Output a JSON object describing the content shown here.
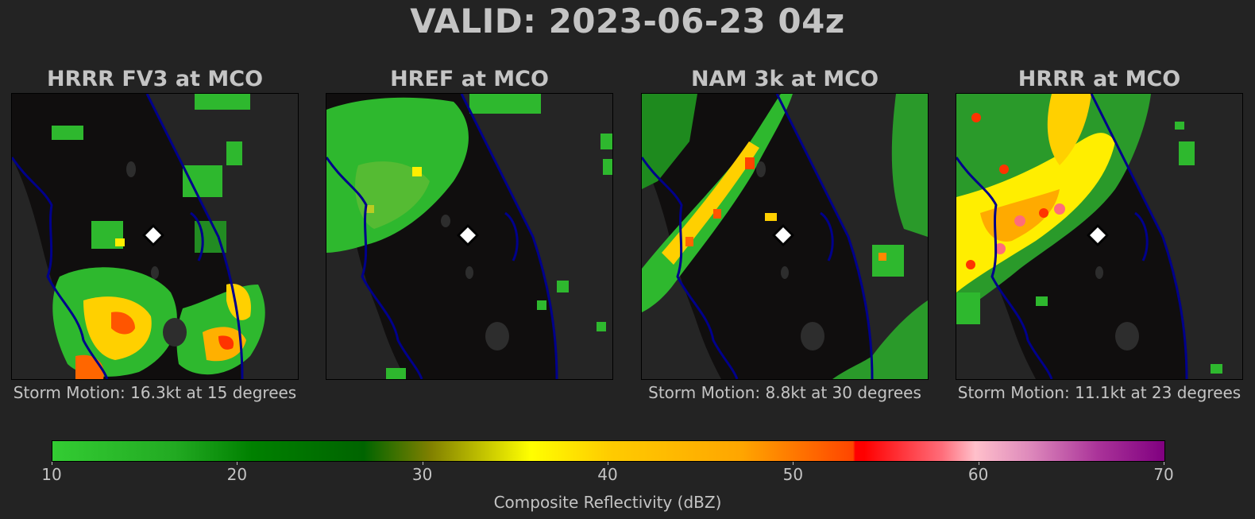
{
  "title": "VALID: 2023-06-23 04z",
  "panels": [
    {
      "title": "HRRR FV3 at MCO",
      "storm_motion": "Storm Motion: 16.3kt at 15 degrees"
    },
    {
      "title": "HREF at MCO",
      "storm_motion": ""
    },
    {
      "title": "NAM 3k at MCO",
      "storm_motion": "Storm Motion: 8.8kt at 30 degrees"
    },
    {
      "title": "HRRR at MCO",
      "storm_motion": "Storm Motion: 11.1kt at 23 degrees"
    }
  ],
  "colorbar": {
    "label": "Composite Reflectivity (dBZ)",
    "ticks": [
      "10",
      "20",
      "30",
      "40",
      "50",
      "60",
      "70"
    ],
    "range": [
      10,
      70
    ]
  },
  "colors": {
    "background": "#232323",
    "land": "#100e0e",
    "coastline": "#00008b",
    "lakes": "#2d2d2d"
  },
  "marker_icon": "white-diamond-on-black-icon"
}
